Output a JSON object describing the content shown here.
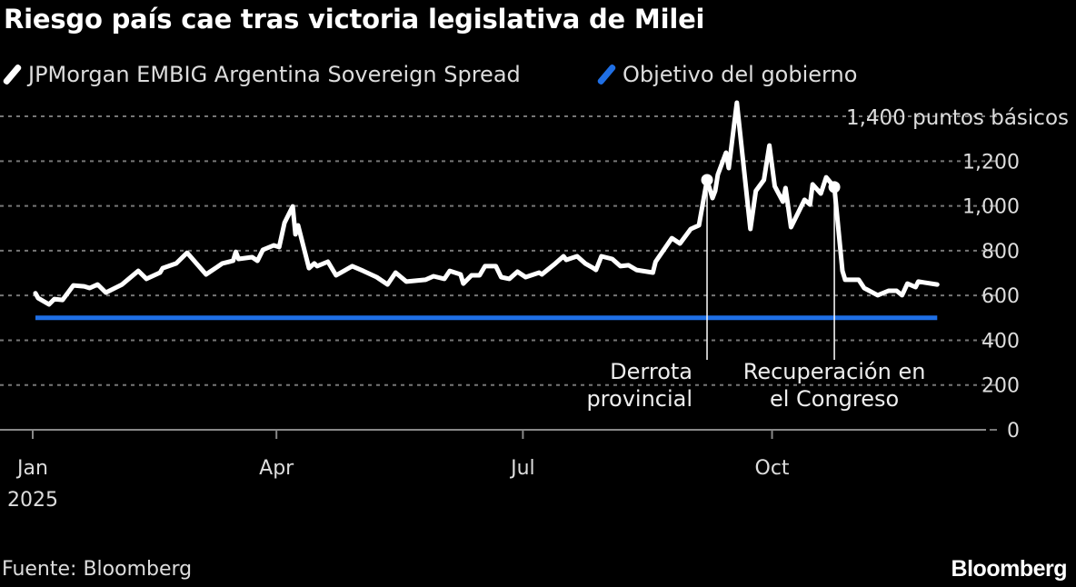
{
  "title": "Riesgo país cae tras victoria legislativa de Milei",
  "legend": [
    {
      "label": "JPMorgan EMBIG Argentina Sovereign Spread",
      "color": "#ffffff"
    },
    {
      "label": "Objetivo del gobierno",
      "color": "#1f6fe5"
    }
  ],
  "footer": {
    "source": "Fuente: Bloomberg",
    "logo": "Bloomberg"
  },
  "chart_data": {
    "type": "line",
    "title": "Riesgo país cae tras victoria legislativa de Milei",
    "xlabel": "",
    "ylabel": "",
    "ylim": [
      0,
      1400
    ],
    "y_unit_label": "1,400 puntos básicos",
    "y_ticks": [
      {
        "value": 0,
        "label": "0"
      },
      {
        "value": 200,
        "label": "200"
      },
      {
        "value": 400,
        "label": "400"
      },
      {
        "value": 600,
        "label": "600"
      },
      {
        "value": 800,
        "label": "800"
      },
      {
        "value": 1000,
        "label": "1,000"
      },
      {
        "value": 1200,
        "label": "1,200"
      }
    ],
    "x_ticks": [
      {
        "date": "2025-01-01",
        "label": "Jan",
        "sublabel": "2025"
      },
      {
        "date": "2025-04-01",
        "label": "Apr"
      },
      {
        "date": "2025-07-01",
        "label": "Jul"
      },
      {
        "date": "2025-10-01",
        "label": "Oct"
      }
    ],
    "xlim": [
      "2025-01-01",
      "2025-12-19"
    ],
    "grid": true,
    "legend_placement": "top-left",
    "series": [
      {
        "name": "JPMorgan EMBIG Argentina Sovereign Spread",
        "color": "#ffffff",
        "points": [
          [
            "2025-01-02",
            610
          ],
          [
            "2025-01-03",
            588
          ],
          [
            "2025-01-07",
            560
          ],
          [
            "2025-01-09",
            584
          ],
          [
            "2025-01-12",
            580
          ],
          [
            "2025-01-16",
            645
          ],
          [
            "2025-01-20",
            641
          ],
          [
            "2025-01-22",
            633
          ],
          [
            "2025-01-25",
            649
          ],
          [
            "2025-01-28",
            613
          ],
          [
            "2025-02-03",
            649
          ],
          [
            "2025-02-09",
            710
          ],
          [
            "2025-02-12",
            674
          ],
          [
            "2025-02-17",
            702
          ],
          [
            "2025-02-18",
            722
          ],
          [
            "2025-02-23",
            743
          ],
          [
            "2025-02-27",
            791
          ],
          [
            "2025-03-06",
            694
          ],
          [
            "2025-03-10",
            726
          ],
          [
            "2025-03-12",
            743
          ],
          [
            "2025-03-16",
            755
          ],
          [
            "2025-03-17",
            795
          ],
          [
            "2025-03-18",
            763
          ],
          [
            "2025-03-23",
            771
          ],
          [
            "2025-03-25",
            755
          ],
          [
            "2025-03-27",
            804
          ],
          [
            "2025-03-31",
            824
          ],
          [
            "2025-04-02",
            816
          ],
          [
            "2025-04-04",
            925
          ],
          [
            "2025-04-07",
            998
          ],
          [
            "2025-04-08",
            873
          ],
          [
            "2025-04-09",
            913
          ],
          [
            "2025-04-13",
            722
          ],
          [
            "2025-04-15",
            743
          ],
          [
            "2025-04-16",
            731
          ],
          [
            "2025-04-20",
            751
          ],
          [
            "2025-04-23",
            690
          ],
          [
            "2025-04-29",
            731
          ],
          [
            "2025-05-03",
            710
          ],
          [
            "2025-05-08",
            682
          ],
          [
            "2025-05-12",
            649
          ],
          [
            "2025-05-15",
            702
          ],
          [
            "2025-05-19",
            662
          ],
          [
            "2025-05-26",
            670
          ],
          [
            "2025-05-29",
            686
          ],
          [
            "2025-06-02",
            674
          ],
          [
            "2025-06-04",
            710
          ],
          [
            "2025-06-08",
            694
          ],
          [
            "2025-06-09",
            653
          ],
          [
            "2025-06-12",
            690
          ],
          [
            "2025-06-15",
            690
          ],
          [
            "2025-06-17",
            731
          ],
          [
            "2025-06-21",
            731
          ],
          [
            "2025-06-23",
            682
          ],
          [
            "2025-06-26",
            674
          ],
          [
            "2025-06-29",
            706
          ],
          [
            "2025-07-02",
            682
          ],
          [
            "2025-07-07",
            702
          ],
          [
            "2025-07-08",
            694
          ],
          [
            "2025-07-13",
            743
          ],
          [
            "2025-07-16",
            775
          ],
          [
            "2025-07-17",
            759
          ],
          [
            "2025-07-21",
            775
          ],
          [
            "2025-07-24",
            743
          ],
          [
            "2025-07-27",
            722
          ],
          [
            "2025-07-28",
            714
          ],
          [
            "2025-07-30",
            775
          ],
          [
            "2025-08-03",
            763
          ],
          [
            "2025-08-06",
            731
          ],
          [
            "2025-08-09",
            735
          ],
          [
            "2025-08-12",
            714
          ],
          [
            "2025-08-18",
            702
          ],
          [
            "2025-08-19",
            751
          ],
          [
            "2025-08-25",
            856
          ],
          [
            "2025-08-28",
            832
          ],
          [
            "2025-09-01",
            897
          ],
          [
            "2025-09-04",
            913
          ],
          [
            "2025-09-07",
            1116
          ],
          [
            "2025-09-09",
            1035
          ],
          [
            "2025-09-10",
            1067
          ],
          [
            "2025-09-11",
            1140
          ],
          [
            "2025-09-14",
            1238
          ],
          [
            "2025-09-15",
            1169
          ],
          [
            "2025-09-18",
            1461
          ],
          [
            "2025-09-23",
            897
          ],
          [
            "2025-09-25",
            1067
          ],
          [
            "2025-09-28",
            1116
          ],
          [
            "2025-09-30",
            1270
          ],
          [
            "2025-10-02",
            1088
          ],
          [
            "2025-10-05",
            1019
          ],
          [
            "2025-10-06",
            1080
          ],
          [
            "2025-10-08",
            905
          ],
          [
            "2025-10-13",
            1027
          ],
          [
            "2025-10-15",
            1006
          ],
          [
            "2025-10-16",
            1096
          ],
          [
            "2025-10-19",
            1055
          ],
          [
            "2025-10-21",
            1128
          ],
          [
            "2025-10-24",
            1084
          ],
          [
            "2025-10-27",
            710
          ],
          [
            "2025-10-28",
            670
          ],
          [
            "2025-11-02",
            670
          ],
          [
            "2025-11-04",
            633
          ],
          [
            "2025-11-09",
            601
          ],
          [
            "2025-11-13",
            621
          ],
          [
            "2025-11-16",
            621
          ],
          [
            "2025-11-18",
            601
          ],
          [
            "2025-11-20",
            653
          ],
          [
            "2025-11-23",
            637
          ],
          [
            "2025-11-24",
            662
          ],
          [
            "2025-12-01",
            649
          ]
        ]
      },
      {
        "name": "Objetivo del gobierno",
        "color": "#1f6fe5",
        "points": [
          [
            "2025-01-02",
            500
          ],
          [
            "2025-12-01",
            500
          ]
        ]
      }
    ],
    "annotations": [
      {
        "date": "2025-09-07",
        "value": 1116,
        "lines": [
          "Derrota",
          "provincial"
        ],
        "align": "end"
      },
      {
        "date": "2025-10-24",
        "value": 1084,
        "lines": [
          "Recuperación en",
          "el Congreso"
        ],
        "align": "middle"
      }
    ]
  }
}
